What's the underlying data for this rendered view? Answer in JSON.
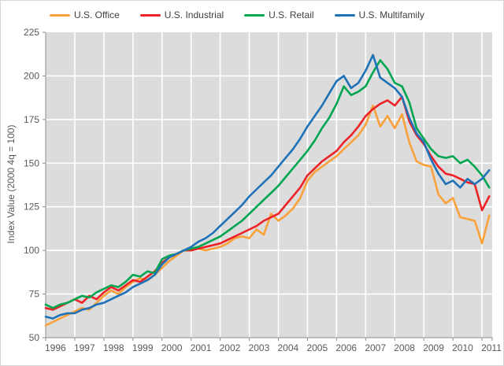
{
  "chart_data": {
    "type": "line",
    "title": "",
    "x_unit": "quarter",
    "x_start": "1996 Q1",
    "x_end": "2011 Q2",
    "x_axis": {
      "tick_labels": [
        "1996",
        "1997",
        "1998",
        "1999",
        "2000",
        "2001",
        "2002",
        "2003",
        "2004",
        "2005",
        "2006",
        "2007",
        "2008",
        "2009",
        "2010",
        "2011"
      ],
      "range": [
        1996,
        2011.35
      ]
    },
    "y_axis": {
      "label": "Index Value (2000 4q = 100)",
      "min": 50,
      "max": 225,
      "step": 25,
      "tick_labels": [
        "50",
        "75",
        "100",
        "125",
        "150",
        "175",
        "200",
        "225"
      ]
    },
    "legend": {
      "position": "top"
    },
    "series": [
      {
        "name": "U.S. Office",
        "color": "#F9A13A",
        "values": [
          57,
          59,
          61,
          63,
          65,
          67,
          66,
          70,
          74,
          77,
          75,
          79,
          82,
          84,
          83,
          86,
          90,
          94,
          97,
          100,
          100,
          101,
          100,
          101,
          102,
          104,
          107,
          108,
          107,
          112,
          109,
          121,
          117,
          120,
          124,
          130,
          140,
          145,
          148,
          151,
          154,
          158,
          162,
          166,
          172,
          183,
          171,
          177,
          170,
          178,
          162,
          151,
          149,
          148,
          132,
          127,
          130,
          119,
          118,
          117,
          104,
          120
        ]
      },
      {
        "name": "U.S. Industrial",
        "color": "#EC2227",
        "values": [
          67,
          66,
          68,
          70,
          72,
          70,
          74,
          72,
          76,
          79,
          77,
          80,
          83,
          82,
          85,
          88,
          93,
          96,
          98,
          100,
          100,
          101,
          102,
          103,
          104,
          106,
          108,
          110,
          112,
          114,
          117,
          119,
          121,
          126,
          131,
          136,
          143,
          147,
          151,
          154,
          157,
          162,
          166,
          171,
          177,
          181,
          184,
          186,
          183,
          188,
          174,
          166,
          161,
          154,
          148,
          144,
          143,
          141,
          139,
          138,
          123,
          131
        ]
      },
      {
        "name": "U.S. Retail",
        "color": "#00A650",
        "values": [
          69,
          67,
          69,
          70,
          72,
          74,
          73,
          76,
          78,
          80,
          79,
          82,
          86,
          85,
          88,
          87,
          95,
          97,
          98,
          100,
          101,
          102,
          104,
          106,
          108,
          111,
          114,
          117,
          121,
          125,
          129,
          133,
          137,
          142,
          147,
          152,
          157,
          163,
          170,
          176,
          184,
          194,
          189,
          191,
          194,
          202,
          209,
          204,
          196,
          194,
          185,
          170,
          164,
          158,
          154,
          153,
          154,
          150,
          152,
          148,
          143,
          136
        ]
      },
      {
        "name": "U.S. Multifamily",
        "color": "#1F72B8",
        "values": [
          62,
          61,
          63,
          64,
          64,
          66,
          67,
          69,
          70,
          72,
          74,
          76,
          79,
          81,
          83,
          86,
          92,
          96,
          98,
          100,
          102,
          105,
          107,
          110,
          114,
          118,
          122,
          126,
          131,
          135,
          139,
          143,
          148,
          153,
          158,
          164,
          171,
          177,
          183,
          190,
          197,
          200,
          193,
          196,
          203,
          212,
          199,
          196,
          193,
          188,
          176,
          167,
          162,
          152,
          144,
          138,
          140,
          136,
          141,
          138,
          141,
          146
        ]
      }
    ],
    "plot": {
      "bg": "#DCDCDC",
      "grid_color": "#FFFFFF",
      "axis_color": "#8C8C8C",
      "tick_text_color": "#595959"
    }
  }
}
